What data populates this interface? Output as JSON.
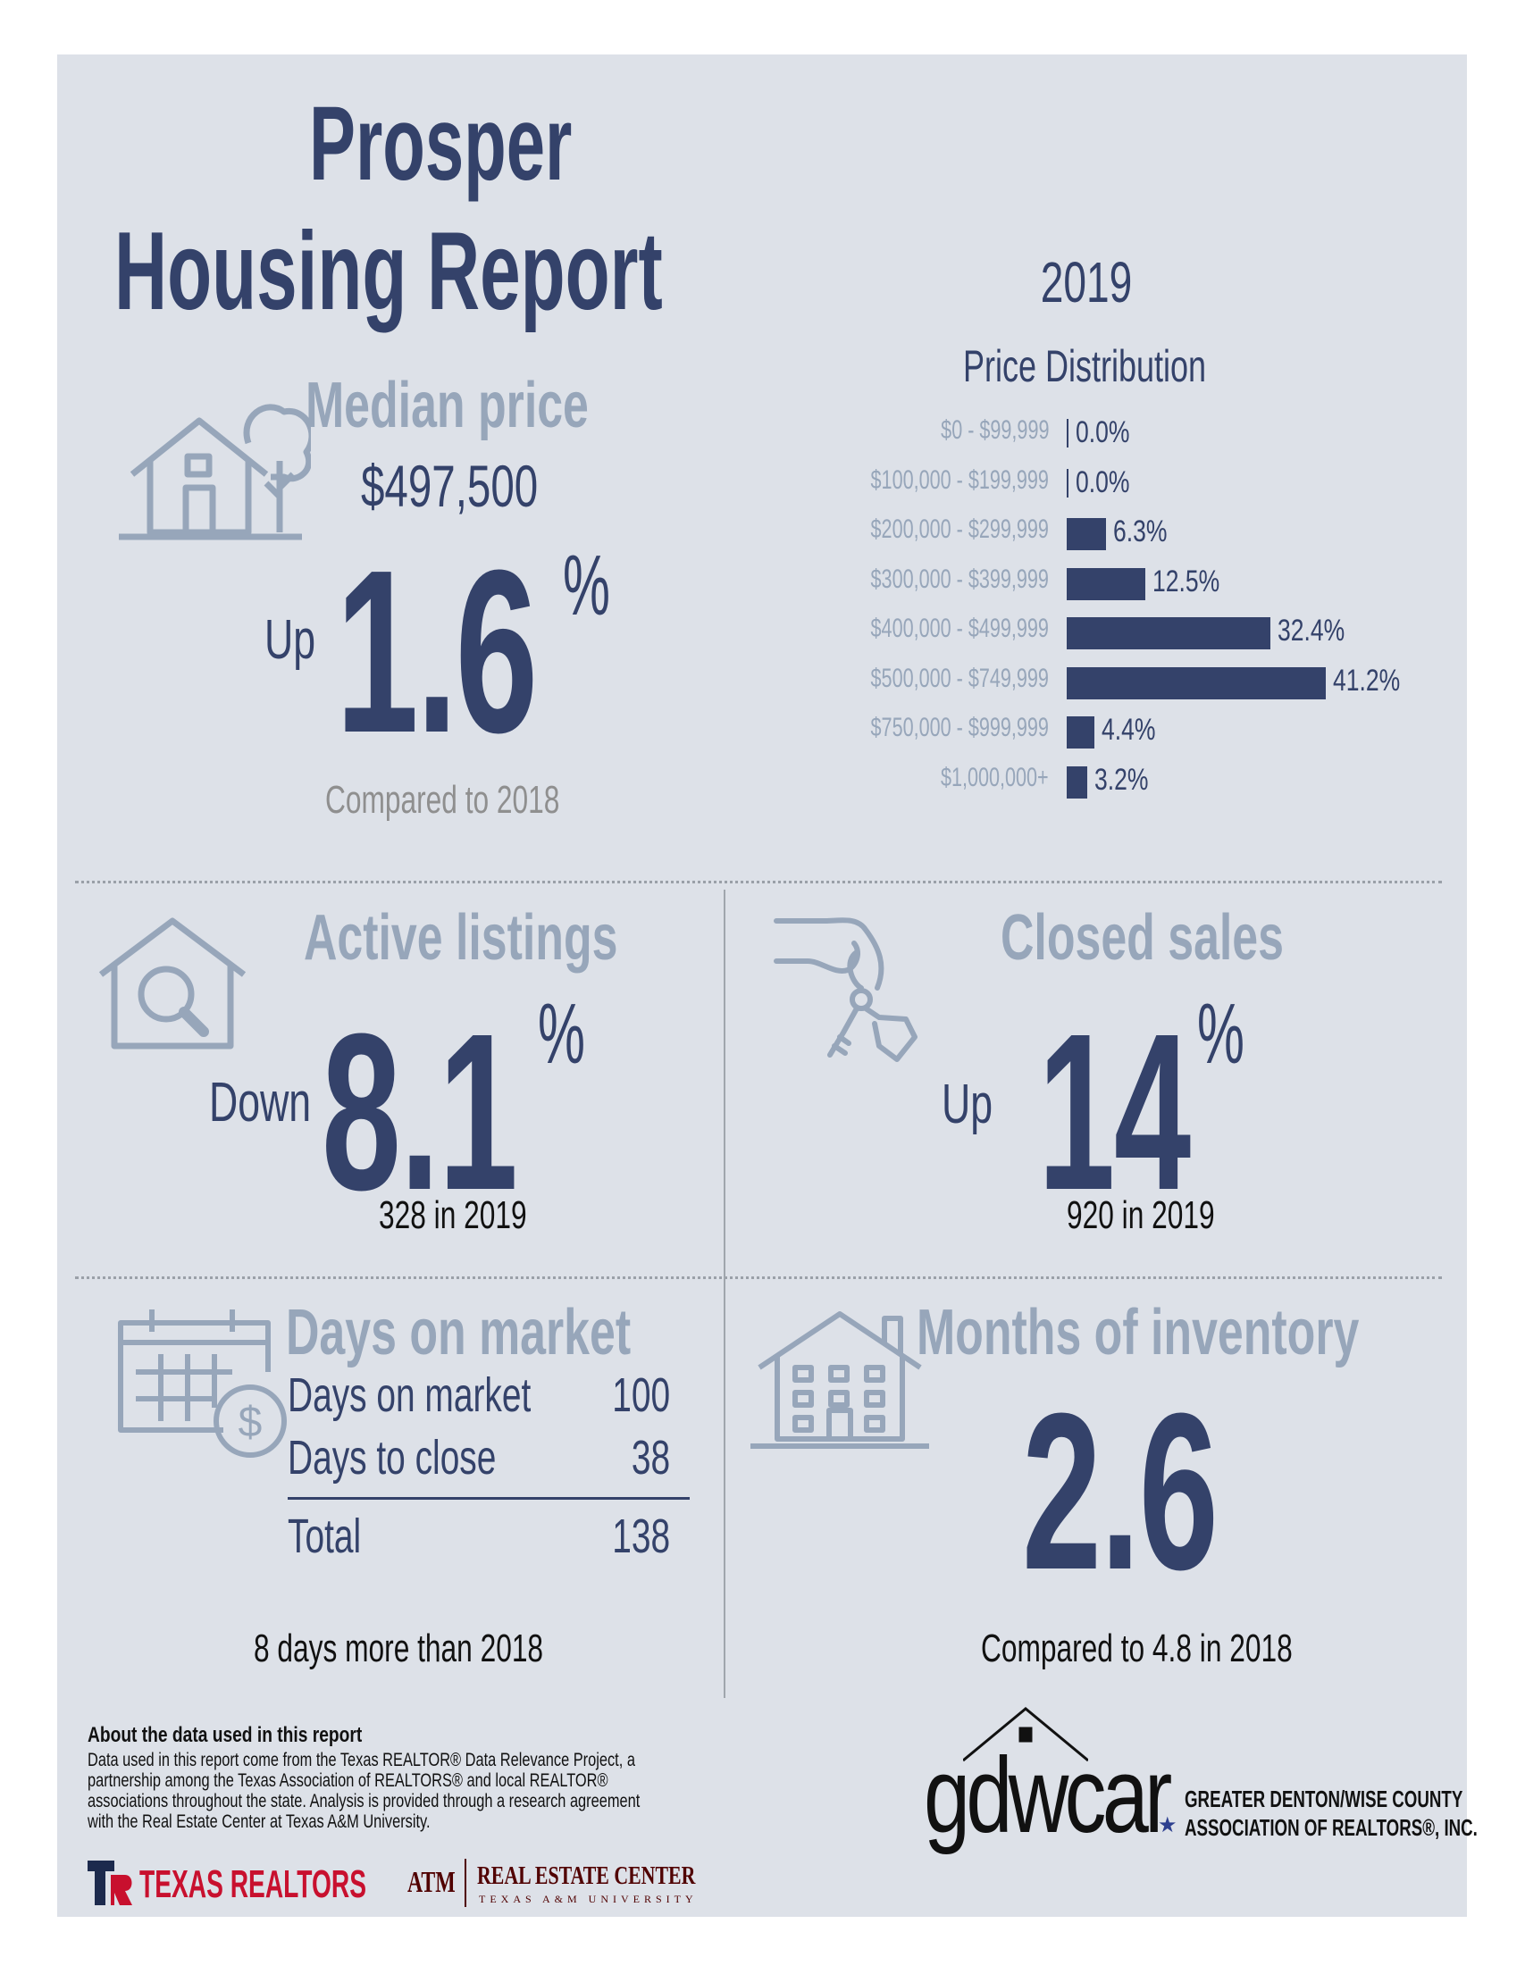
{
  "header": {
    "line1": "Prosper",
    "line2": "Housing Report",
    "year": "2019"
  },
  "median": {
    "title": "Median price",
    "price": "$497,500",
    "direction": "Up",
    "change": "1.6",
    "unit": "%",
    "footnote": "Compared to 2018"
  },
  "distribution": {
    "title": "Price Distribution",
    "rows": [
      {
        "label": "$0 - $99,999",
        "value": "0.0%"
      },
      {
        "label": "$100,000 - $199,999",
        "value": "0.0%"
      },
      {
        "label": "$200,000 - $299,999",
        "value": "6.3%"
      },
      {
        "label": "$300,000 - $399,999",
        "value": "12.5%"
      },
      {
        "label": "$400,000 - $499,999",
        "value": "32.4%"
      },
      {
        "label": "$500,000 - $749,999",
        "value": "41.2%"
      },
      {
        "label": "$750,000 - $999,999",
        "value": "4.4%"
      },
      {
        "label": "$1,000,000+",
        "value": "3.2%"
      }
    ]
  },
  "chart_data": {
    "type": "bar",
    "title": "Price Distribution",
    "categories": [
      "$0 - $99,999",
      "$100,000 - $199,999",
      "$200,000 - $299,999",
      "$300,000 - $399,999",
      "$400,000 - $499,999",
      "$500,000 - $749,999",
      "$750,000 - $999,999",
      "$1,000,000+"
    ],
    "values": [
      0.0,
      0.0,
      6.3,
      12.5,
      32.4,
      41.2,
      4.4,
      3.2
    ],
    "orientation": "horizontal"
  },
  "active": {
    "title": "Active listings",
    "direction": "Down",
    "change": "8.1",
    "unit": "%",
    "footnote": "328 in 2019"
  },
  "closed": {
    "title": "Closed sales",
    "direction": "Up",
    "change": "14",
    "unit": "%",
    "footnote": "920 in 2019"
  },
  "dom": {
    "title": "Days on market",
    "rows": [
      {
        "label": "Days on market",
        "value": "100"
      },
      {
        "label": "Days to close",
        "value": "38"
      }
    ],
    "total_label": "Total",
    "total_value": "138",
    "footnote": "8 days more than 2018"
  },
  "inventory": {
    "title": "Months of inventory",
    "value": "2.6",
    "footnote": "Compared to 4.8 in 2018"
  },
  "about": {
    "title": "About the data used in this report",
    "lines": [
      "Data used in this report come from the Texas REALTOR® Data Relevance Project, a",
      "partnership among the Texas Association of REALTORS® and local REALTOR®",
      "associations throughout the state. Analysis is provided through a research agreement",
      "with the Real Estate Center at Texas A&M University."
    ]
  },
  "logos": {
    "texas_realtors": "TEXAS REALTORS",
    "atm": "ATM",
    "rec_line1": "REAL ESTATE CENTER",
    "rec_line2": "TEXAS A&M UNIVERSITY",
    "gdwcar": "gdwcar",
    "assoc_line1": "GREATER DENTON/WISE COUNTY",
    "assoc_line2": "ASSOCIATION OF REALTORS®, INC."
  },
  "colors": {
    "navy": "#34426a",
    "grayblue": "#97a6ba",
    "panel": "#dde1e8",
    "maroon": "#500000",
    "red": "#c8102e"
  }
}
